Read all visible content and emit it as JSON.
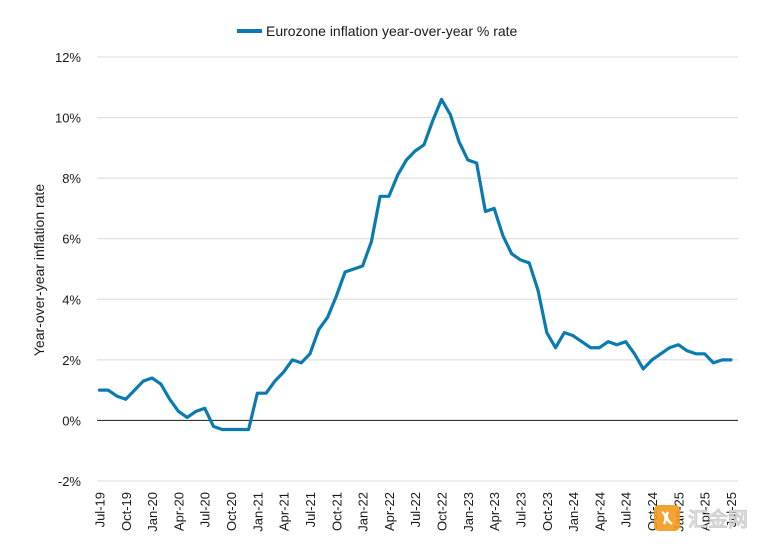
{
  "chart_data": {
    "type": "line",
    "title": "",
    "legend": {
      "position": "top-center",
      "entries": [
        "Eurozone inflation year-over-year % rate"
      ]
    },
    "ylabel": "Year-over-year inflation rate",
    "xlabel": "",
    "ylim": [
      -2,
      12
    ],
    "yticks": [
      "-2%",
      "0%",
      "2%",
      "4%",
      "6%",
      "8%",
      "10%",
      "12%"
    ],
    "ytick_values": [
      -2,
      0,
      2,
      4,
      6,
      8,
      10,
      12
    ],
    "grid": "horizontal",
    "x_start": "2019-07",
    "xtick_labels": [
      "Jul-19",
      "Oct-19",
      "Jan-20",
      "Apr-20",
      "Jul-20",
      "Oct-20",
      "Jan-21",
      "Apr-21",
      "Jul-21",
      "Oct-21",
      "Jan-22",
      "Apr-22",
      "Jul-22",
      "Oct-22",
      "Jan-23",
      "Apr-23",
      "Jul-23",
      "Oct-23",
      "Jan-24",
      "Apr-24",
      "Jul-24",
      "Oct-24",
      "Jan-25",
      "Apr-25",
      "Jul-25"
    ],
    "colors": {
      "series": "#0a7bb0",
      "grid": "#d9d9d9",
      "zero_line": "#333333"
    },
    "series": [
      {
        "name": "Eurozone inflation year-over-year % rate",
        "x": [
          "Jul-19",
          "Aug-19",
          "Sep-19",
          "Oct-19",
          "Nov-19",
          "Dec-19",
          "Jan-20",
          "Feb-20",
          "Mar-20",
          "Apr-20",
          "May-20",
          "Jun-20",
          "Jul-20",
          "Aug-20",
          "Sep-20",
          "Oct-20",
          "Nov-20",
          "Dec-20",
          "Jan-21",
          "Feb-21",
          "Mar-21",
          "Apr-21",
          "May-21",
          "Jun-21",
          "Jul-21",
          "Aug-21",
          "Sep-21",
          "Oct-21",
          "Nov-21",
          "Dec-21",
          "Jan-22",
          "Feb-22",
          "Mar-22",
          "Apr-22",
          "May-22",
          "Jun-22",
          "Jul-22",
          "Aug-22",
          "Sep-22",
          "Oct-22",
          "Nov-22",
          "Dec-22",
          "Jan-23",
          "Feb-23",
          "Mar-23",
          "Apr-23",
          "May-23",
          "Jun-23",
          "Jul-23",
          "Aug-23",
          "Sep-23",
          "Oct-23",
          "Nov-23",
          "Dec-23",
          "Jan-24",
          "Feb-24",
          "Mar-24",
          "Apr-24",
          "May-24",
          "Jun-24",
          "Jul-24",
          "Aug-24",
          "Sep-24",
          "Oct-24",
          "Nov-24",
          "Dec-24",
          "Jan-25",
          "Feb-25",
          "Mar-25",
          "Apr-25",
          "May-25",
          "Jun-25",
          "Jul-25"
        ],
        "values": [
          1.0,
          1.0,
          0.8,
          0.7,
          1.0,
          1.3,
          1.4,
          1.2,
          0.7,
          0.3,
          0.1,
          0.3,
          0.4,
          -0.2,
          -0.3,
          -0.3,
          -0.3,
          -0.3,
          0.9,
          0.9,
          1.3,
          1.6,
          2.0,
          1.9,
          2.2,
          3.0,
          3.4,
          4.1,
          4.9,
          5.0,
          5.1,
          5.9,
          7.4,
          7.4,
          8.1,
          8.6,
          8.9,
          9.1,
          9.9,
          10.6,
          10.1,
          9.2,
          8.6,
          8.5,
          6.9,
          7.0,
          6.1,
          5.5,
          5.3,
          5.2,
          4.3,
          2.9,
          2.4,
          2.9,
          2.8,
          2.6,
          2.4,
          2.4,
          2.6,
          2.5,
          2.6,
          2.2,
          1.7,
          2.0,
          2.2,
          2.4,
          2.5,
          2.3,
          2.2,
          2.2,
          1.9,
          2.0,
          2.0
        ]
      }
    ]
  }
}
